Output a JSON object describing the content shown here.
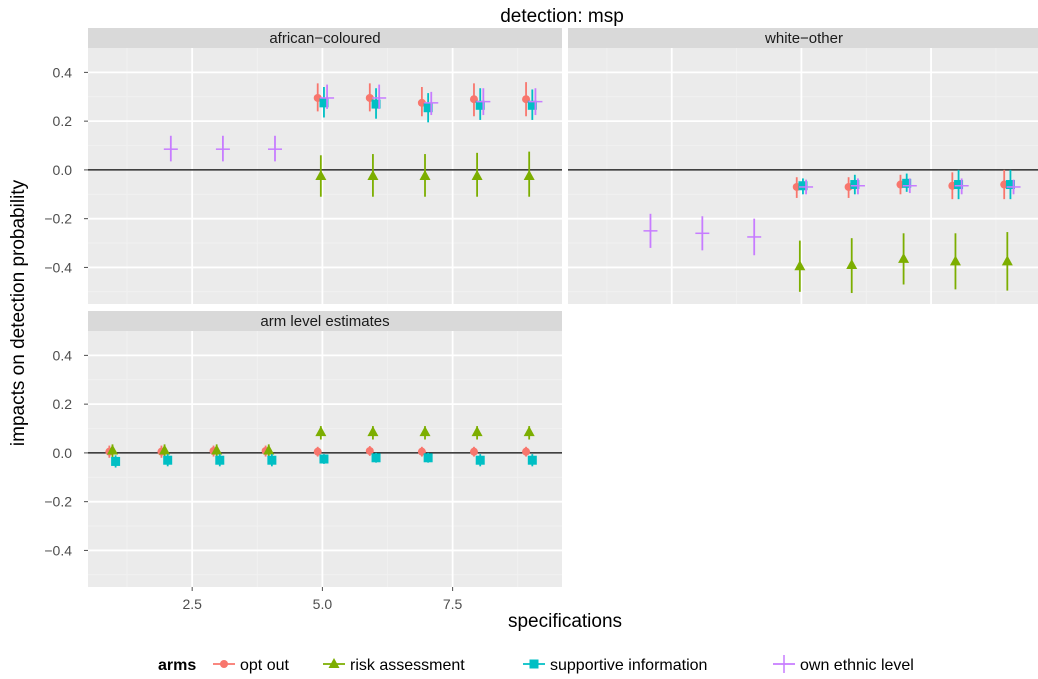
{
  "chart_data": {
    "type": "scatter",
    "subtype": "point-range (point estimates with confidence intervals), faceted",
    "title": "detection: msp",
    "xlabel": "specifications",
    "ylabel": "impacts on detection probability",
    "xlim": [
      0.5,
      9.6
    ],
    "ylim": [
      -0.55,
      0.5
    ],
    "x_ticks": [
      2.5,
      5.0,
      7.5
    ],
    "x_tick_labels": [
      "2.5",
      "5.0",
      "7.5"
    ],
    "y_ticks": [
      -0.4,
      -0.2,
      0.0,
      0.2,
      0.4
    ],
    "y_tick_labels": [
      "−0.4",
      "−0.2",
      "0.0",
      "0.2",
      "0.4"
    ],
    "reference_line_y": 0,
    "grid": true,
    "legend": {
      "title": "arms",
      "position": "bottom",
      "entries": [
        {
          "label": "opt out",
          "color": "#F8766D",
          "shape": "circle"
        },
        {
          "label": "risk assessment",
          "color": "#7CAE00",
          "shape": "triangle"
        },
        {
          "label": "supportive information",
          "color": "#00BFC4",
          "shape": "square"
        },
        {
          "label": "own ethnic level",
          "color": "#C77CFF",
          "shape": "plus"
        }
      ]
    },
    "panels": [
      {
        "title": "african−coloured",
        "series": [
          {
            "name": "opt out",
            "x": [
              5,
              6,
              7,
              8,
              9
            ],
            "y": [
              0.295,
              0.295,
              0.275,
              0.29,
              0.29
            ],
            "ymin": [
              0.24,
              0.24,
              0.22,
              0.22,
              0.22
            ],
            "ymax": [
              0.355,
              0.355,
              0.34,
              0.355,
              0.36
            ]
          },
          {
            "name": "risk assessment",
            "x": [
              5,
              6,
              7,
              8,
              9
            ],
            "y": [
              -0.025,
              -0.025,
              -0.025,
              -0.025,
              -0.025
            ],
            "ymin": [
              -0.11,
              -0.11,
              -0.11,
              -0.11,
              -0.11
            ],
            "ymax": [
              0.06,
              0.065,
              0.065,
              0.07,
              0.075
            ]
          },
          {
            "name": "supportive information",
            "x": [
              5,
              6,
              7,
              8,
              9
            ],
            "y": [
              0.275,
              0.27,
              0.255,
              0.265,
              0.265
            ],
            "ymin": [
              0.215,
              0.21,
              0.195,
              0.205,
              0.205
            ],
            "ymax": [
              0.34,
              0.335,
              0.315,
              0.335,
              0.33
            ]
          },
          {
            "name": "own ethnic level",
            "x": [
              2,
              3,
              4,
              5,
              6,
              7,
              8,
              9
            ],
            "y": [
              0.085,
              0.085,
              0.085,
              0.295,
              0.295,
              0.275,
              0.28,
              0.28
            ],
            "ymin": [
              0.035,
              0.035,
              0.035,
              0.25,
              0.25,
              0.225,
              0.225,
              0.225
            ],
            "ymax": [
              0.14,
              0.14,
              0.14,
              0.35,
              0.35,
              0.32,
              0.335,
              0.335
            ]
          }
        ]
      },
      {
        "title": "white−other",
        "series": [
          {
            "name": "opt out",
            "x": [
              5,
              6,
              7,
              8,
              9
            ],
            "y": [
              -0.07,
              -0.07,
              -0.06,
              -0.065,
              -0.06
            ],
            "ymin": [
              -0.115,
              -0.115,
              -0.1,
              -0.12,
              -0.12
            ],
            "ymax": [
              -0.03,
              -0.03,
              -0.02,
              -0.01,
              0.0
            ]
          },
          {
            "name": "risk assessment",
            "x": [
              5,
              6,
              7,
              8,
              9
            ],
            "y": [
              -0.395,
              -0.39,
              -0.365,
              -0.375,
              -0.375
            ],
            "ymin": [
              -0.5,
              -0.505,
              -0.47,
              -0.49,
              -0.495
            ],
            "ymax": [
              -0.29,
              -0.28,
              -0.26,
              -0.26,
              -0.255
            ]
          },
          {
            "name": "supportive information",
            "x": [
              5,
              6,
              7,
              8,
              9
            ],
            "y": [
              -0.065,
              -0.06,
              -0.055,
              -0.06,
              -0.06
            ],
            "ymin": [
              -0.1,
              -0.1,
              -0.09,
              -0.12,
              -0.12
            ],
            "ymax": [
              -0.035,
              -0.02,
              -0.015,
              0.0,
              0.0
            ]
          },
          {
            "name": "own ethnic level",
            "x": [
              2,
              3,
              4,
              5,
              6,
              7,
              8,
              9
            ],
            "y": [
              -0.25,
              -0.26,
              -0.275,
              -0.07,
              -0.065,
              -0.065,
              -0.065,
              -0.07
            ],
            "ymin": [
              -0.32,
              -0.33,
              -0.35,
              -0.1,
              -0.1,
              -0.095,
              -0.1,
              -0.1
            ],
            "ymax": [
              -0.18,
              -0.19,
              -0.2,
              -0.04,
              -0.035,
              -0.035,
              -0.035,
              -0.04
            ]
          }
        ]
      },
      {
        "title": "arm level estimates",
        "series": [
          {
            "name": "opt out",
            "x": [
              1,
              2,
              3,
              4,
              5,
              6,
              7,
              8,
              9
            ],
            "y": [
              0.005,
              0.005,
              0.008,
              0.008,
              0.005,
              0.008,
              0.005,
              0.005,
              0.005
            ],
            "ymin": [
              -0.02,
              -0.02,
              -0.015,
              -0.015,
              -0.015,
              -0.012,
              -0.015,
              -0.015,
              -0.015
            ],
            "ymax": [
              0.03,
              0.03,
              0.03,
              0.03,
              0.025,
              0.028,
              0.025,
              0.025,
              0.025
            ]
          },
          {
            "name": "risk assessment",
            "x": [
              1,
              2,
              3,
              4,
              5,
              6,
              7,
              8,
              9
            ],
            "y": [
              0.01,
              0.01,
              0.01,
              0.01,
              0.085,
              0.085,
              0.085,
              0.085,
              0.085
            ],
            "ymin": [
              -0.02,
              -0.02,
              -0.02,
              -0.02,
              0.055,
              0.055,
              0.055,
              0.055,
              0.055
            ],
            "ymax": [
              0.035,
              0.035,
              0.035,
              0.035,
              0.11,
              0.11,
              0.11,
              0.11,
              0.11
            ]
          },
          {
            "name": "supportive information",
            "x": [
              1,
              2,
              3,
              4,
              5,
              6,
              7,
              8,
              9
            ],
            "y": [
              -0.035,
              -0.03,
              -0.03,
              -0.03,
              -0.025,
              -0.02,
              -0.02,
              -0.03,
              -0.03
            ],
            "ymin": [
              -0.06,
              -0.055,
              -0.055,
              -0.055,
              -0.045,
              -0.04,
              -0.04,
              -0.055,
              -0.055
            ],
            "ymax": [
              -0.01,
              -0.005,
              -0.005,
              -0.005,
              -0.005,
              0.0,
              0.0,
              -0.005,
              -0.005
            ]
          }
        ]
      }
    ]
  }
}
